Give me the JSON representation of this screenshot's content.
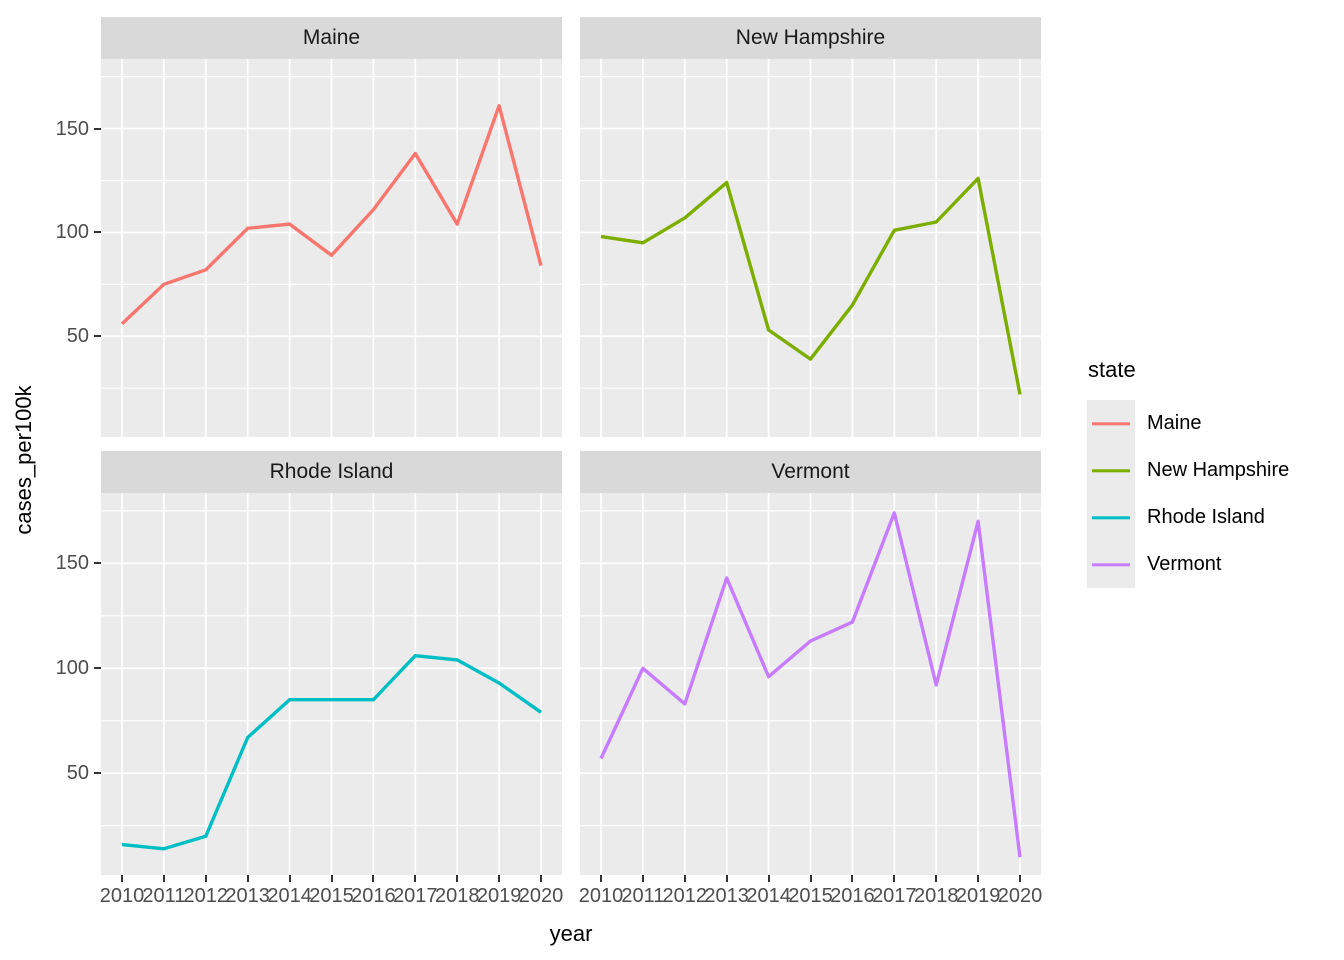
{
  "chart_data": {
    "type": "line",
    "faceted": true,
    "title": "",
    "xlabel": "year",
    "ylabel": "cases_per100k",
    "x": [
      2010,
      2011,
      2012,
      2013,
      2014,
      2015,
      2016,
      2017,
      2018,
      2019,
      2020
    ],
    "x_tick_labels": [
      "2010",
      "2011",
      "2012",
      "2013",
      "2014",
      "2015",
      "2016",
      "2017",
      "2018",
      "2019",
      "2020"
    ],
    "y_ticks": [
      50,
      100,
      150
    ],
    "y_tick_labels": [
      "50",
      "100",
      "150"
    ],
    "y_minor_ticks": [
      25,
      75,
      125,
      175
    ],
    "xlim": [
      2009.5,
      2020.5
    ],
    "ylim": [
      1.5,
      183.5
    ],
    "grid": "on",
    "legend_position": "right",
    "facets": [
      {
        "title": "Maine",
        "color": "#F8766D",
        "values": [
          56,
          75,
          82,
          102,
          104,
          89,
          111,
          138,
          104,
          161,
          84
        ]
      },
      {
        "title": "New Hampshire",
        "color": "#7CAE00",
        "values": [
          98,
          95,
          107,
          124,
          53,
          39,
          65,
          101,
          105,
          126,
          22
        ]
      },
      {
        "title": "Rhode Island",
        "color": "#00BFC4",
        "values": [
          16,
          14,
          20,
          67,
          85,
          85,
          85,
          106,
          104,
          93,
          79
        ]
      },
      {
        "title": "Vermont",
        "color": "#C77CFF",
        "values": [
          57,
          100,
          83,
          143,
          96,
          113,
          122,
          174,
          92,
          170,
          10
        ]
      }
    ]
  },
  "axes": {
    "x_title": "year",
    "y_title": "cases_per100k"
  },
  "legend": {
    "title": "state",
    "items": [
      {
        "label": "Maine",
        "color": "#F8766D"
      },
      {
        "label": "New Hampshire",
        "color": "#7CAE00"
      },
      {
        "label": "Rhode Island",
        "color": "#00BFC4"
      },
      {
        "label": "Vermont",
        "color": "#C77CFF"
      }
    ]
  },
  "theme": {
    "panel_background": "#EBEBEB",
    "strip_background": "#D9D9D9",
    "grid_color": "#FFFFFF",
    "axis_text_color": "#4D4D4D",
    "strip_text_color": "#1A1A1A",
    "tick_mark_color": "#333333",
    "legend_key_background": "#EBEBEB"
  }
}
